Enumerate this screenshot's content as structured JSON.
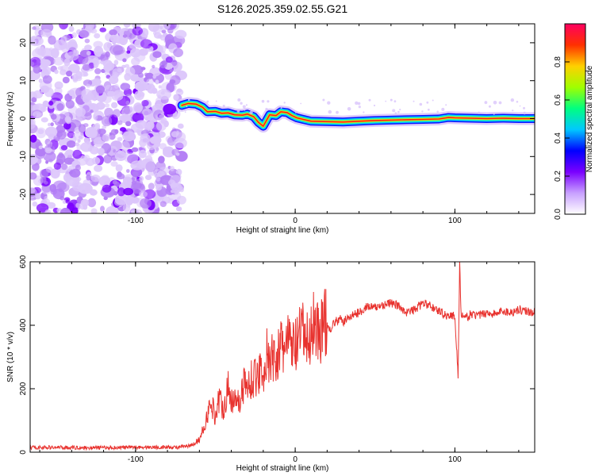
{
  "figure": {
    "title": "S126.2025.359.02.55.G21"
  },
  "chart_data": [
    {
      "type": "heatmap",
      "title": "S126.2025.359.02.55.G21",
      "xlabel": "Height of straight line (km)",
      "ylabel": "Frequency (Hz)",
      "xlim": [
        -166,
        150
      ],
      "ylim": [
        -25,
        25
      ],
      "x_ticks": [
        -100,
        0,
        100
      ],
      "y_ticks": [
        -20,
        -10,
        0,
        10,
        20
      ],
      "noise_region_x": [
        -166,
        -71
      ],
      "signal_track": {
        "x": [
          -71,
          -67,
          -62,
          -58,
          -55,
          -50,
          -46,
          -42,
          -38,
          -33,
          -30,
          -26,
          -23,
          -20,
          -16,
          -12,
          -9,
          -5,
          -2,
          1,
          5,
          10,
          20,
          30,
          40,
          50,
          60,
          70,
          80,
          90,
          96,
          100,
          110,
          120,
          130,
          140,
          150
        ],
        "y": [
          3.5,
          4.0,
          3.8,
          3.0,
          1.8,
          1.9,
          1.4,
          1.5,
          1.0,
          0.9,
          1.2,
          0.5,
          -1.0,
          -2.0,
          1.0,
          0.8,
          1.8,
          1.6,
          0.8,
          0.2,
          -0.2,
          -0.7,
          -0.8,
          -0.9,
          -0.7,
          -0.5,
          -0.4,
          -0.3,
          -0.2,
          -0.1,
          0.3,
          0.2,
          0.1,
          0.0,
          0.1,
          0.0,
          0.0
        ]
      },
      "colorbar": {
        "label": "Normalized spectral amplitude",
        "range": [
          0,
          1
        ],
        "ticks": [
          "0.0",
          "0.2",
          "0.4",
          "0.6",
          "0.8"
        ],
        "colors": [
          "#ffffff",
          "#c8a0ff",
          "#7a00ff",
          "#0000ff",
          "#00c8ff",
          "#00ff80",
          "#a0ff00",
          "#ffd000",
          "#ff3000",
          "#ff0060"
        ]
      }
    },
    {
      "type": "line",
      "title": "",
      "xlabel": "Height of straight line (km)",
      "ylabel": "SNR (10 * v/v)",
      "xlim": [
        -166,
        150
      ],
      "ylim": [
        0,
        600
      ],
      "x_ticks": [
        -100,
        0,
        100
      ],
      "y_ticks": [
        0,
        200,
        400,
        600
      ],
      "color": "#e8322e",
      "series": [
        {
          "name": "SNR",
          "x": [
            -166,
            -150,
            -130,
            -110,
            -90,
            -75,
            -65,
            -60,
            -57,
            -55,
            -52,
            -50,
            -48,
            -45,
            -42,
            -40,
            -37,
            -35,
            -32,
            -30,
            -27,
            -25,
            -22,
            -20,
            -18,
            -16,
            -14,
            -12,
            -10,
            -8,
            -5,
            -3,
            0,
            3,
            5,
            8,
            10,
            12,
            15,
            18,
            20,
            22,
            25,
            28,
            30,
            35,
            40,
            45,
            50,
            55,
            60,
            65,
            70,
            75,
            80,
            85,
            90,
            95,
            100,
            102,
            103,
            104,
            106,
            110,
            115,
            120,
            125,
            130,
            135,
            140,
            145,
            150
          ],
          "y": [
            15,
            15,
            14,
            15,
            16,
            15,
            20,
            40,
            80,
            120,
            150,
            110,
            170,
            140,
            200,
            160,
            190,
            150,
            220,
            200,
            240,
            230,
            260,
            250,
            310,
            270,
            300,
            290,
            330,
            320,
            350,
            340,
            330,
            360,
            380,
            340,
            380,
            420,
            370,
            410,
            400,
            390,
            410,
            420,
            410,
            430,
            440,
            460,
            455,
            465,
            470,
            460,
            440,
            450,
            470,
            460,
            445,
            430,
            430,
            240,
            590,
            430,
            420,
            435,
            430,
            440,
            435,
            445,
            440,
            450,
            445,
            440
          ]
        }
      ]
    }
  ]
}
